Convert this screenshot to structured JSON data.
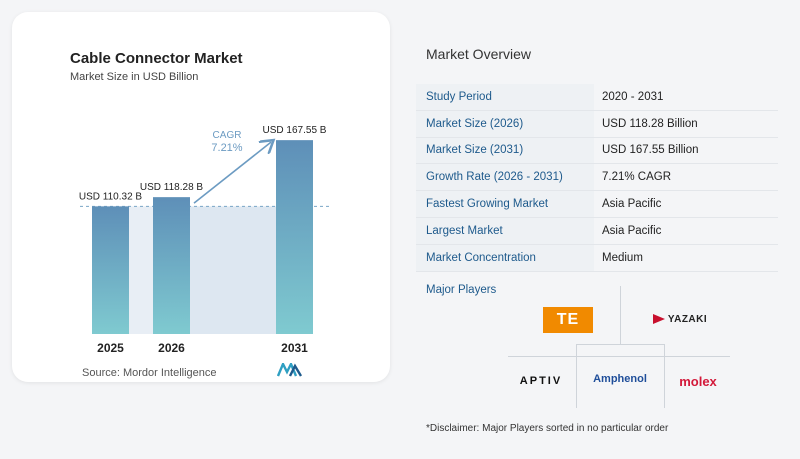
{
  "chart_data": {
    "type": "bar",
    "title": "Cable Connector Market",
    "subtitle": "Market Size in USD Billion",
    "categories": [
      "2025",
      "2026",
      "2031"
    ],
    "values": [
      110.32,
      118.28,
      167.55
    ],
    "value_labels": [
      "USD 110.32 B",
      "USD 118.28 B",
      "USD 167.55 B"
    ],
    "cagr_label": "CAGR",
    "cagr_value": "7.21%",
    "xlabel": "",
    "ylabel": "",
    "colors": {
      "bar_top": "#5e8fb8",
      "bar_bottom": "#7fcad0",
      "shade": "#dde7f1",
      "arrow": "#6c9bc2",
      "dash": "#7aa6c6"
    }
  },
  "source": "Source: Mordor Intelligence",
  "overview": {
    "title": "Market Overview",
    "rows": [
      {
        "label": "Study Period",
        "value": "2020 - 2031"
      },
      {
        "label": "Market Size (2026)",
        "value": "USD 118.28 Billion"
      },
      {
        "label": "Market Size (2031)",
        "value": "USD 167.55 Billion"
      },
      {
        "label": "Growth Rate (2026 - 2031)",
        "value": "7.21% CAGR"
      },
      {
        "label": "Fastest Growing Market",
        "value": "Asia Pacific"
      },
      {
        "label": "Largest Market",
        "value": "Asia Pacific"
      },
      {
        "label": "Market Concentration",
        "value": "Medium"
      }
    ]
  },
  "players": {
    "title": "Major Players",
    "names": [
      "TE",
      "YAZAKI",
      "APTIV",
      "Amphenol",
      "molex"
    ],
    "disclaimer": "*Disclaimer: Major Players sorted in no particular order"
  }
}
